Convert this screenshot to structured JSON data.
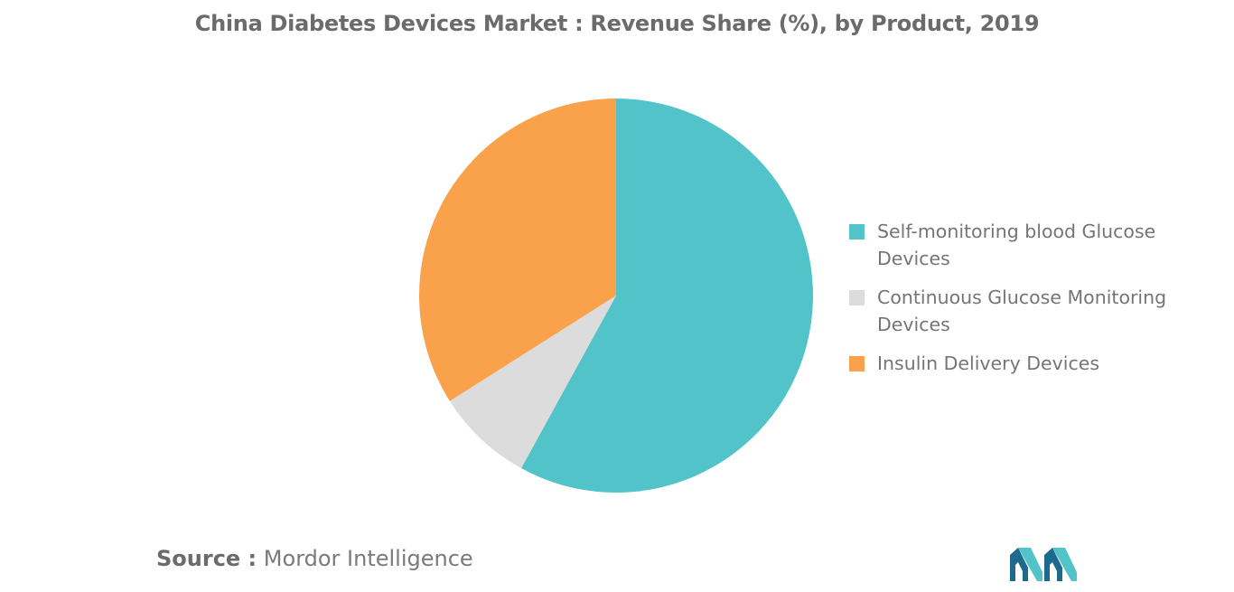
{
  "chart_data": {
    "type": "pie",
    "title": "China Diabetes Devices Market : Revenue Share (%), by Product, 2019",
    "slices": [
      {
        "label": "Self-monitoring blood Glucose Devices",
        "value": 58,
        "color": "#52c3c9"
      },
      {
        "label": "Continuous Glucose Monitoring Devices",
        "value": 8,
        "color": "#dcdcdc"
      },
      {
        "label": "Insulin Delivery Devices",
        "value": 34,
        "color": "#f9a14b"
      }
    ],
    "start_angle_deg": 0,
    "direction": "clockwise",
    "legend_position": "right"
  },
  "source": {
    "label": "Source :",
    "text": "Mordor Intelligence"
  },
  "logo": {
    "icon": "mordor-intelligence-logo-icon",
    "colors": [
      "#1d6b8c",
      "#52c3c9"
    ]
  }
}
